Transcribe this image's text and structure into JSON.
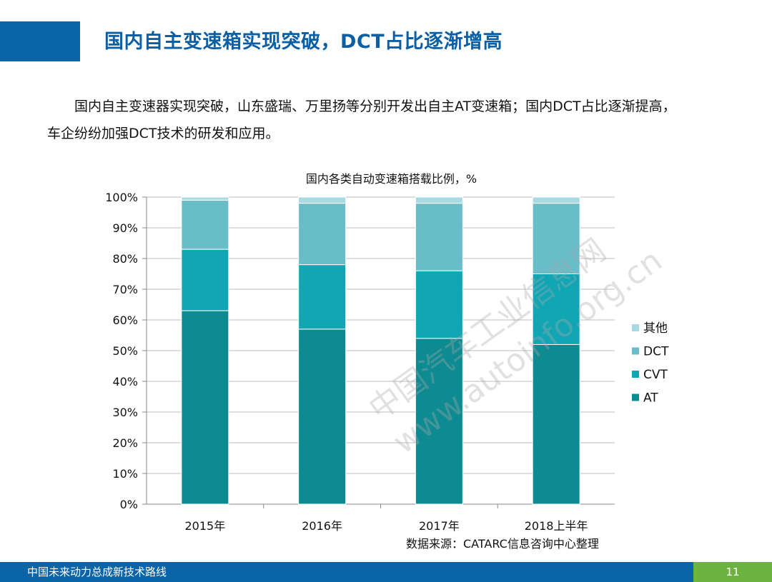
{
  "header": {
    "title": "国内自主变速箱实现突破，DCT占比逐渐增高"
  },
  "body": {
    "line1": "国内自主变速器实现突破，山东盛瑞、万里扬等分别开发出自主AT变速箱；国内DCT占比逐渐提高，",
    "line2": "车企纷纷加强DCT技术的研发和应用。"
  },
  "chart_data": {
    "type": "bar",
    "stacked": true,
    "title": "国内各类自动变速箱搭载比例，%",
    "categories": [
      "2015年",
      "2016年",
      "2017年",
      "2018上半年"
    ],
    "series": [
      {
        "name": "AT",
        "values": [
          63,
          57,
          54,
          52
        ],
        "color": "#0d8b91"
      },
      {
        "name": "CVT",
        "values": [
          20,
          21,
          22,
          23
        ],
        "color": "#12a6b5"
      },
      {
        "name": "DCT",
        "values": [
          16,
          20,
          22,
          23
        ],
        "color": "#69bdc9"
      },
      {
        "name": "其他",
        "values": [
          1,
          2,
          2,
          2
        ],
        "color": "#a9d9e2"
      }
    ],
    "y_ticks": [
      "0%",
      "10%",
      "20%",
      "30%",
      "40%",
      "50%",
      "60%",
      "70%",
      "80%",
      "90%",
      "100%"
    ],
    "ylim": [
      0,
      100
    ],
    "grid": true,
    "legend": "right"
  },
  "source_note": "数据来源：CATARC信息咨询中心整理",
  "watermark": {
    "line1": "中国汽车工业信息网",
    "line2": "www.autoinfo.org.cn"
  },
  "footer": {
    "text": "中国未来动力总成新技术路线",
    "page": "11"
  }
}
